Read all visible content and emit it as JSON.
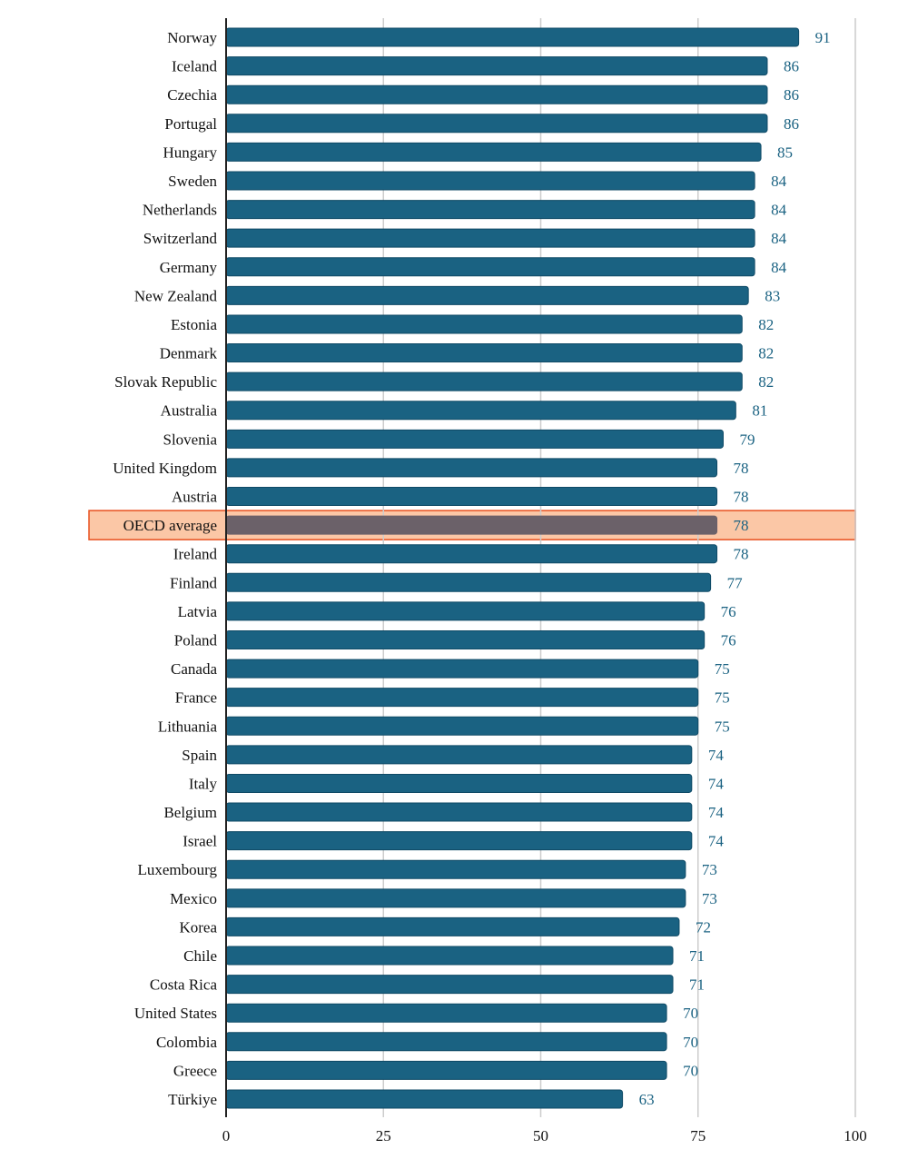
{
  "chart_data": {
    "type": "bar",
    "orientation": "horizontal",
    "categories": [
      "Norway",
      "Iceland",
      "Czechia",
      "Portugal",
      "Hungary",
      "Sweden",
      "Netherlands",
      "Switzerland",
      "Germany",
      "New Zealand",
      "Estonia",
      "Denmark",
      "Slovak Republic",
      "Australia",
      "Slovenia",
      "United Kingdom",
      "Austria",
      "OECD average",
      "Ireland",
      "Finland",
      "Latvia",
      "Poland",
      "Canada",
      "France",
      "Lithuania",
      "Spain",
      "Italy",
      "Belgium",
      "Israel",
      "Luxembourg",
      "Mexico",
      "Korea",
      "Chile",
      "Costa Rica",
      "United States",
      "Colombia",
      "Greece",
      "Türkiye"
    ],
    "values": [
      91,
      86,
      86,
      86,
      85,
      84,
      84,
      84,
      84,
      83,
      82,
      82,
      82,
      81,
      79,
      78,
      78,
      78,
      78,
      77,
      76,
      76,
      75,
      75,
      75,
      74,
      74,
      74,
      74,
      73,
      73,
      72,
      71,
      71,
      70,
      70,
      70,
      63
    ],
    "highlight": "OECD average",
    "xlim": [
      0,
      100
    ],
    "xticks": [
      0,
      25,
      50,
      75,
      100
    ],
    "grid": true,
    "title": "",
    "xlabel": "",
    "ylabel": "",
    "colors": {
      "bar": "#1a6282",
      "bar_border": "#0f4a66",
      "highlight_bar": "#6b6169",
      "highlight_band": "#fbc7a6",
      "highlight_border": "#e8501e",
      "value_label": "#1a6282",
      "grid": "#cccccc"
    }
  }
}
